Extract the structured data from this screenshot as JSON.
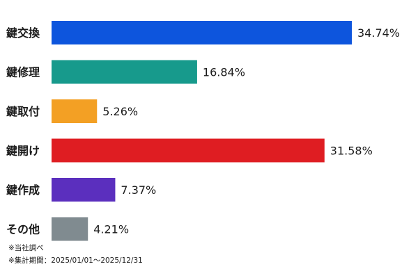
{
  "chart_data": {
    "type": "bar",
    "orientation": "horizontal",
    "categories": [
      "鍵交換",
      "鍵修理",
      "鍵取付",
      "鍵開け",
      "鍵作成",
      "その他"
    ],
    "values": [
      34.74,
      16.84,
      5.26,
      31.58,
      7.37,
      4.21
    ],
    "value_labels": [
      "34.74%",
      "16.84%",
      "5.26%",
      "31.58%",
      "7.37%",
      "4.21%"
    ],
    "colors": [
      "#0d55dd",
      "#179a8c",
      "#f3a024",
      "#df1d22",
      "#5b2fbe",
      "#808b90"
    ],
    "xlim": [
      0,
      40
    ],
    "grid": false,
    "legend": "none"
  },
  "notes": [
    "※当社調べ",
    "※集計期間：2025/01/01～2025/12/31"
  ]
}
